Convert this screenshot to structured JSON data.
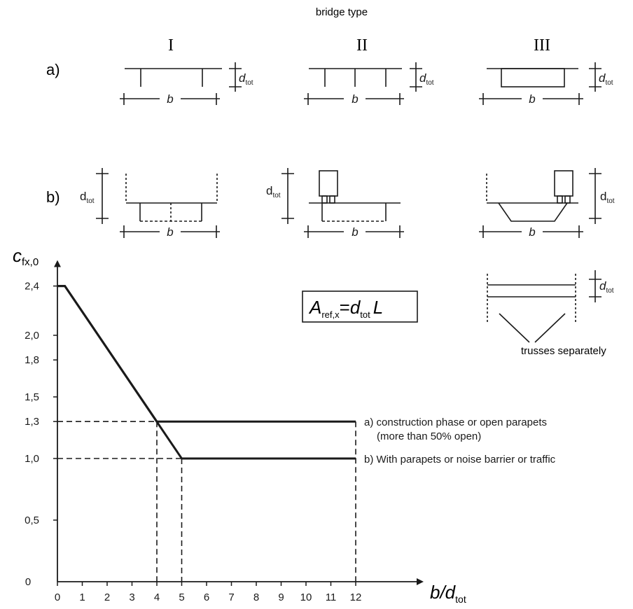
{
  "header": {
    "caption": "bridge type",
    "types": [
      "I",
      "II",
      "III"
    ],
    "row_labels": [
      "a)",
      "b)"
    ]
  },
  "symbols": {
    "b": "b",
    "d": "d",
    "tot": "tot",
    "trusses_note": "trusses separately"
  },
  "formula": {
    "lhs_main": "A",
    "lhs_sub": "ref,x",
    "equals": "=",
    "rhs_d": "d",
    "rhs_sub": "tot",
    "rhs_L": "L"
  },
  "axes": {
    "y_main": "c",
    "y_sub": "fx,0",
    "x_main": "b/d",
    "x_sub": "tot"
  },
  "chart_data": {
    "type": "line",
    "x_ticks": [
      "0",
      "1",
      "2",
      "3",
      "4",
      "5",
      "6",
      "7",
      "8",
      "9",
      "10",
      "11",
      "12"
    ],
    "y_ticks": [
      {
        "v": 0,
        "label": "0"
      },
      {
        "v": 0.5,
        "label": "0,5"
      },
      {
        "v": 1.0,
        "label": "1,0"
      },
      {
        "v": 1.3,
        "label": "1,3"
      },
      {
        "v": 1.5,
        "label": "1,5"
      },
      {
        "v": 1.8,
        "label": "1,8"
      },
      {
        "v": 2.0,
        "label": "2,0"
      },
      {
        "v": 2.4,
        "label": "2,4"
      }
    ],
    "xlim": [
      0,
      12
    ],
    "ylim": [
      0,
      2.4
    ],
    "series": [
      {
        "name": "a) construction phase or open parapets",
        "name_line2": "(more than 50% open)",
        "x": [
          0,
          0.3,
          4,
          12
        ],
        "y": [
          2.4,
          2.4,
          1.3,
          1.3
        ]
      },
      {
        "name": "b) With parapets or noise barrier or traffic",
        "x": [
          0,
          0.3,
          5,
          12
        ],
        "y": [
          2.4,
          2.4,
          1.0,
          1.0
        ]
      }
    ]
  }
}
